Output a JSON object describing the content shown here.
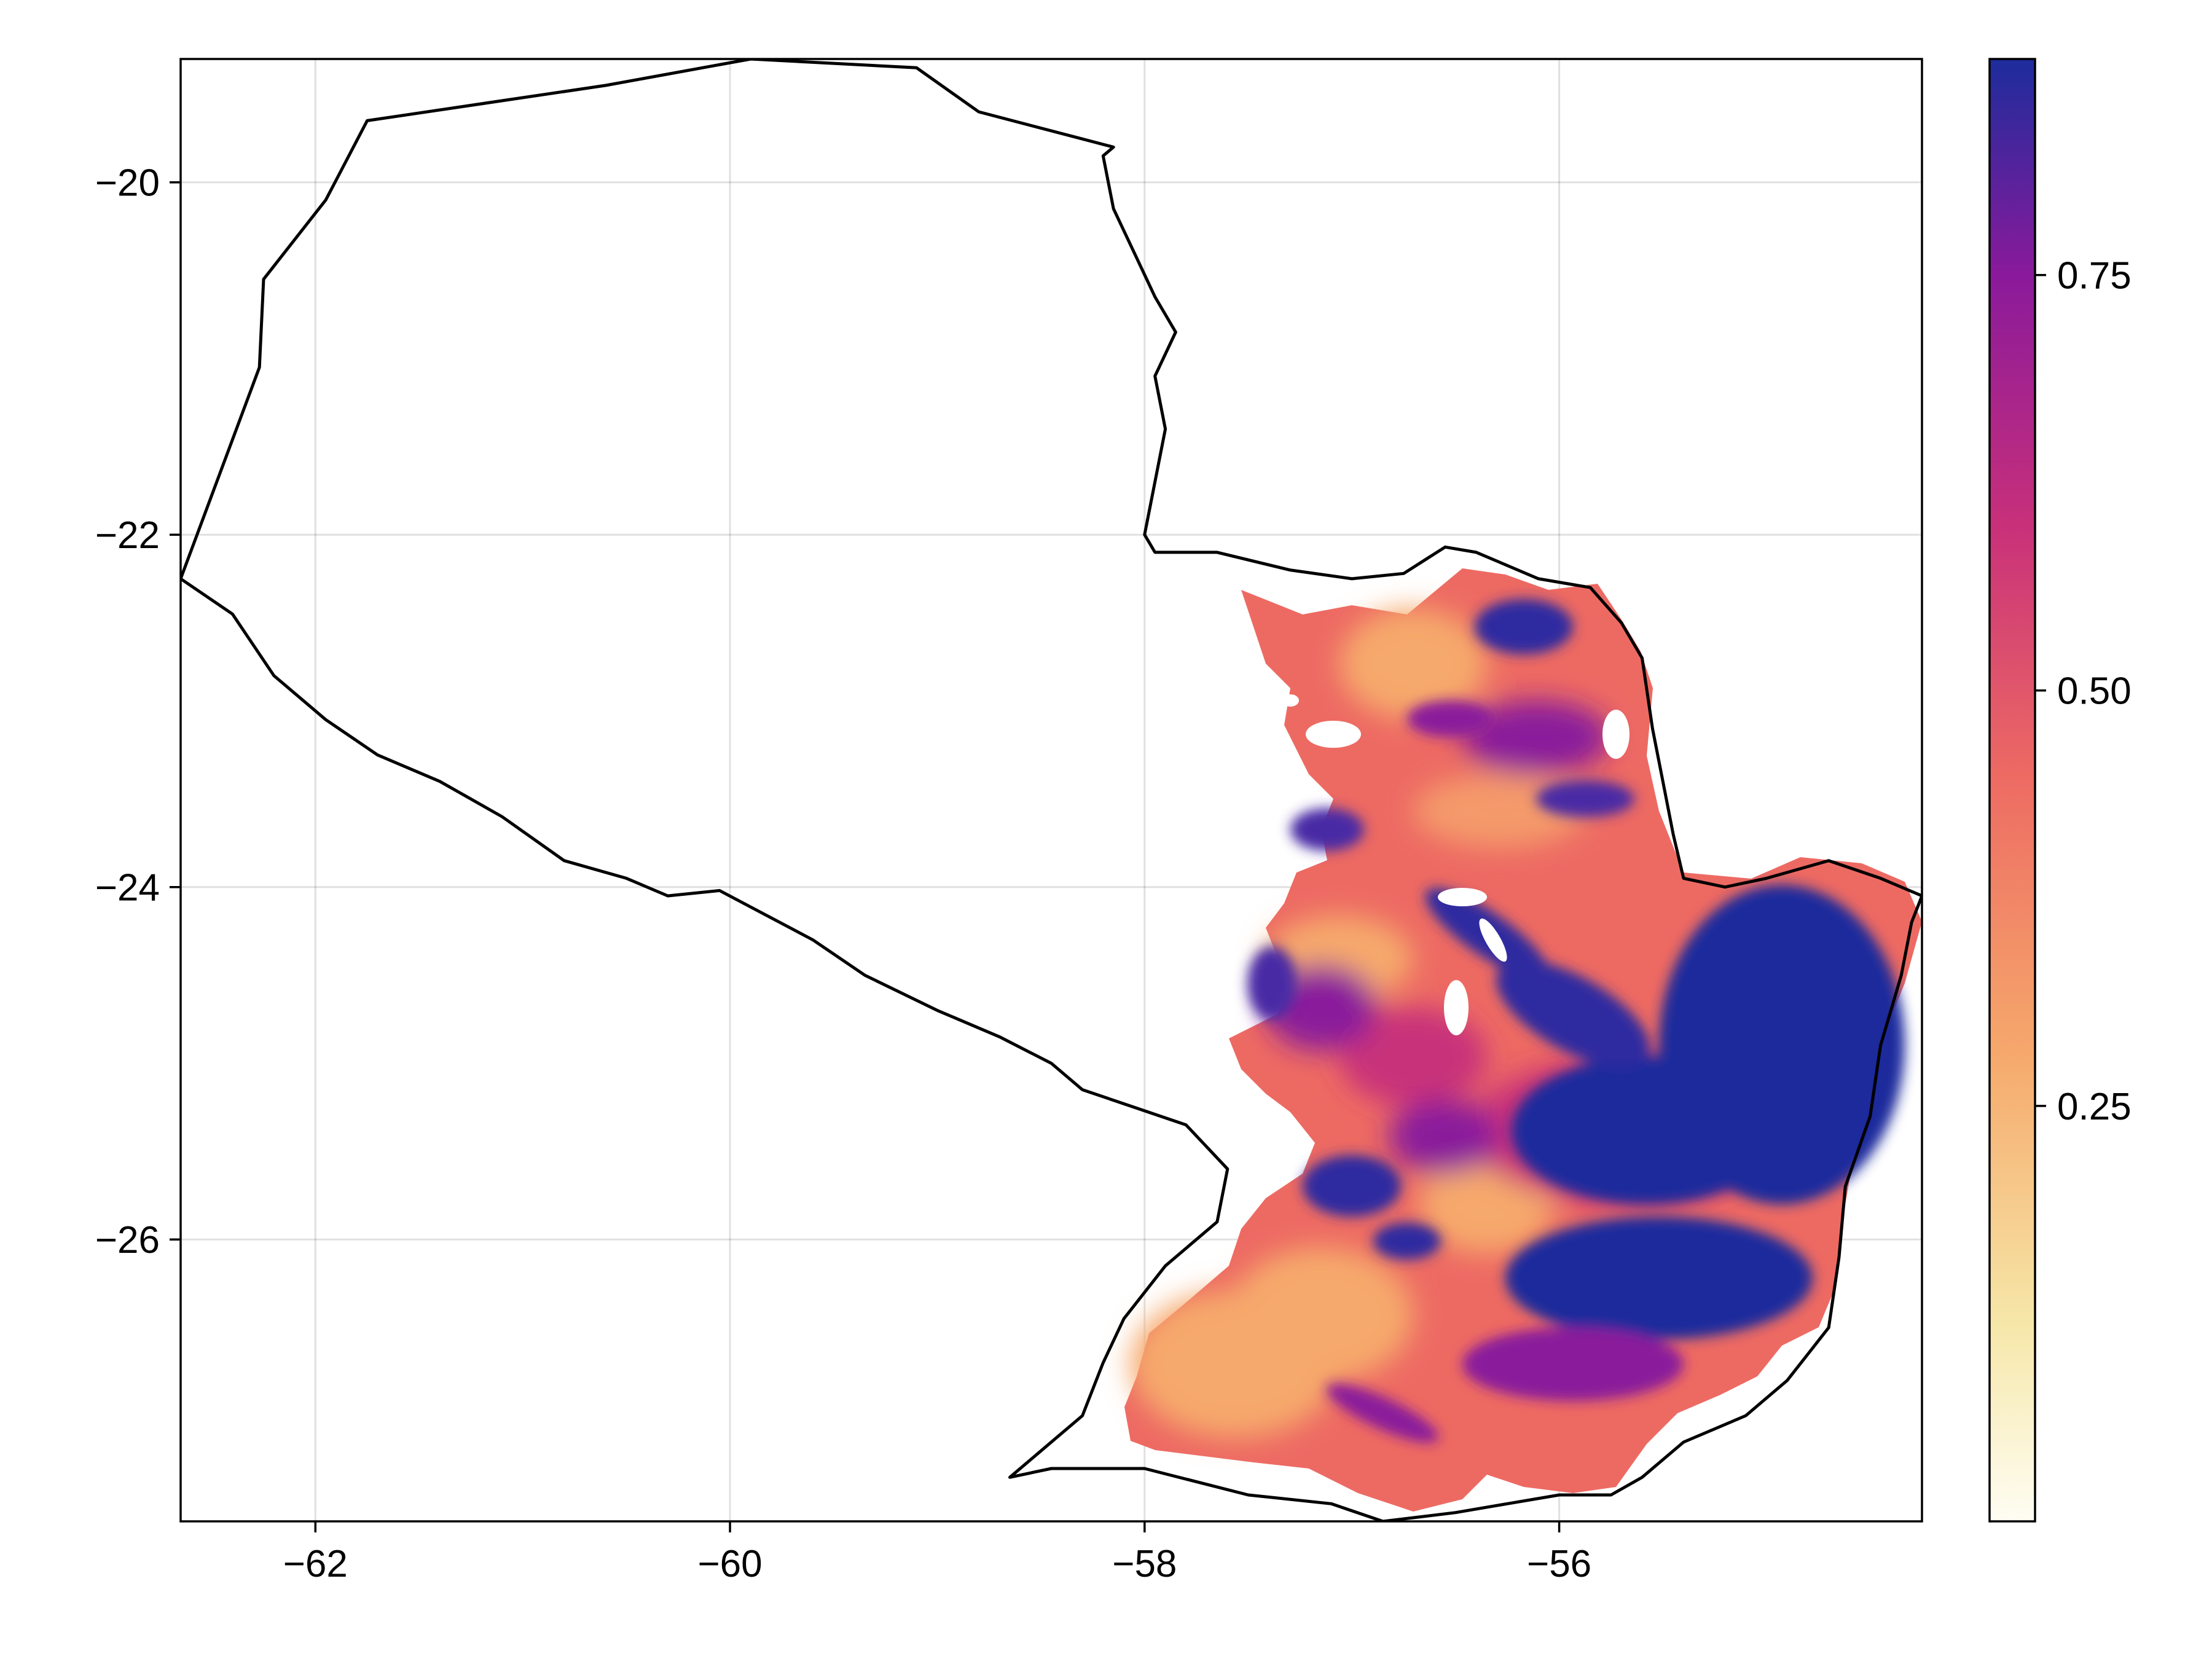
{
  "chart_data": {
    "type": "heatmap",
    "title": "",
    "xlabel": "",
    "ylabel": "",
    "xlim": [
      -62.65,
      -54.25
    ],
    "ylim": [
      -27.6,
      -19.3
    ],
    "x_ticks": [
      -62,
      -60,
      -58,
      -56
    ],
    "x_tick_labels": [
      "−62",
      "−60",
      "−58",
      "−56"
    ],
    "y_ticks": [
      -20,
      -22,
      -24,
      -26
    ],
    "y_tick_labels": [
      "−20",
      "−22",
      "−24",
      "−26"
    ],
    "grid": true,
    "region": "Paraguay",
    "colorbar": {
      "colormap": "magma-like (reversed plasma)",
      "range": [
        0.0,
        0.88
      ],
      "ticks": [
        0.25,
        0.5,
        0.75
      ],
      "tick_labels": [
        "0.25",
        "0.50",
        "0.75"
      ],
      "stops": [
        {
          "value": 0.0,
          "color": "#fffdf3"
        },
        {
          "value": 0.12,
          "color": "#f6e7a8"
        },
        {
          "value": 0.28,
          "color": "#f6a96c"
        },
        {
          "value": 0.45,
          "color": "#ed6a63"
        },
        {
          "value": 0.6,
          "color": "#c8307a"
        },
        {
          "value": 0.75,
          "color": "#8a1a9b"
        },
        {
          "value": 0.88,
          "color": "#1d2c9c"
        }
      ]
    },
    "border_outline": [
      [
        -62.65,
        -22.25
      ],
      [
        -62.4,
        -22.45
      ],
      [
        -62.2,
        -22.8
      ],
      [
        -61.95,
        -23.05
      ],
      [
        -61.7,
        -23.25
      ],
      [
        -61.4,
        -23.4
      ],
      [
        -61.1,
        -23.6
      ],
      [
        -60.8,
        -23.85
      ],
      [
        -60.5,
        -23.95
      ],
      [
        -60.3,
        -24.05
      ],
      [
        -60.05,
        -24.02
      ],
      [
        -59.6,
        -24.3
      ],
      [
        -59.35,
        -24.5
      ],
      [
        -59.0,
        -24.7
      ],
      [
        -58.7,
        -24.85
      ],
      [
        -58.45,
        -25.0
      ],
      [
        -58.3,
        -25.15
      ],
      [
        -58.05,
        -25.25
      ],
      [
        -57.8,
        -25.35
      ],
      [
        -57.6,
        -25.6
      ],
      [
        -57.65,
        -25.9
      ],
      [
        -57.9,
        -26.15
      ],
      [
        -58.1,
        -26.45
      ],
      [
        -58.2,
        -26.7
      ],
      [
        -58.3,
        -27.0
      ],
      [
        -58.5,
        -27.2
      ],
      [
        -58.65,
        -27.35
      ],
      [
        -58.45,
        -27.3
      ],
      [
        -58.0,
        -27.3
      ],
      [
        -57.5,
        -27.45
      ],
      [
        -57.1,
        -27.5
      ],
      [
        -56.85,
        -27.6
      ],
      [
        -56.5,
        -27.55
      ],
      [
        -56.25,
        -27.5
      ],
      [
        -56.0,
        -27.45
      ],
      [
        -55.75,
        -27.45
      ],
      [
        -55.6,
        -27.35
      ],
      [
        -55.4,
        -27.15
      ],
      [
        -55.1,
        -27.0
      ],
      [
        -54.9,
        -26.8
      ],
      [
        -54.7,
        -26.5
      ],
      [
        -54.65,
        -26.1
      ],
      [
        -54.62,
        -25.7
      ],
      [
        -54.5,
        -25.3
      ],
      [
        -54.45,
        -24.9
      ],
      [
        -54.35,
        -24.5
      ],
      [
        -54.3,
        -24.2
      ],
      [
        -54.25,
        -24.05
      ],
      [
        -54.45,
        -23.95
      ],
      [
        -54.7,
        -23.85
      ],
      [
        -55.0,
        -23.95
      ],
      [
        -55.2,
        -24.0
      ],
      [
        -55.4,
        -23.95
      ],
      [
        -55.45,
        -23.7
      ],
      [
        -55.5,
        -23.4
      ],
      [
        -55.55,
        -23.1
      ],
      [
        -55.6,
        -22.7
      ],
      [
        -55.7,
        -22.5
      ],
      [
        -55.85,
        -22.3
      ],
      [
        -56.1,
        -22.25
      ],
      [
        -56.4,
        -22.1
      ],
      [
        -56.55,
        -22.07
      ],
      [
        -56.75,
        -22.22
      ],
      [
        -57.0,
        -22.25
      ],
      [
        -57.3,
        -22.2
      ],
      [
        -57.65,
        -22.1
      ],
      [
        -57.95,
        -22.1
      ],
      [
        -58.0,
        -22.0
      ],
      [
        -57.95,
        -21.7
      ],
      [
        -57.9,
        -21.4
      ],
      [
        -57.95,
        -21.1
      ],
      [
        -57.85,
        -20.85
      ],
      [
        -57.95,
        -20.65
      ],
      [
        -58.05,
        -20.4
      ],
      [
        -58.15,
        -20.15
      ],
      [
        -58.2,
        -19.85
      ],
      [
        -58.15,
        -19.8
      ],
      [
        -58.8,
        -19.6
      ],
      [
        -59.1,
        -19.35
      ],
      [
        -59.9,
        -19.3
      ],
      [
        -60.6,
        -19.45
      ],
      [
        -61.75,
        -19.65
      ],
      [
        -61.95,
        -20.1
      ],
      [
        -62.25,
        -20.55
      ],
      [
        -62.27,
        -21.05
      ],
      [
        -62.65,
        -22.25
      ]
    ]
  }
}
